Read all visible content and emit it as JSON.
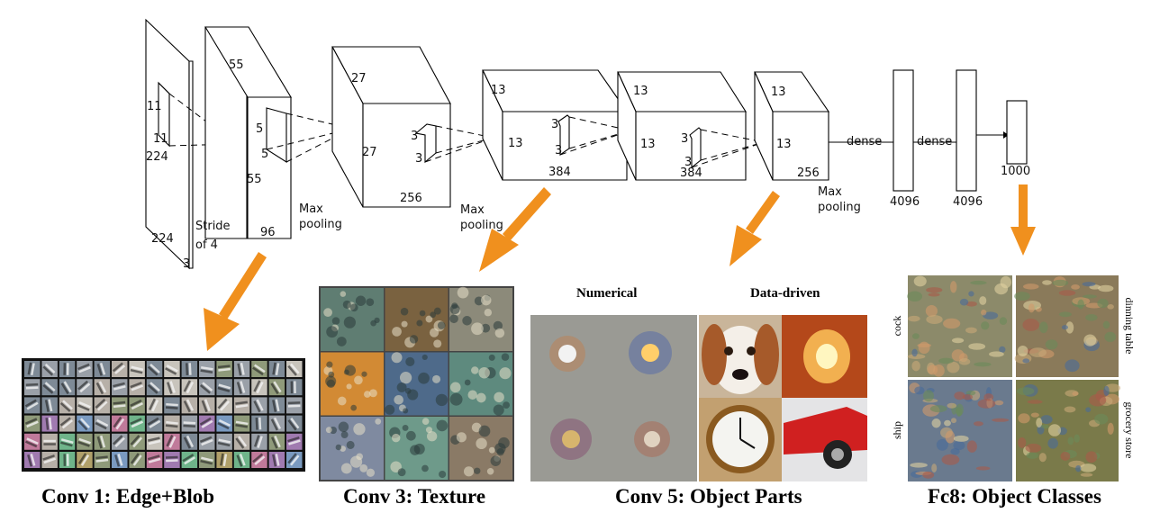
{
  "network": {
    "input": {
      "size_h": "224",
      "size_v": "224",
      "channels": "3",
      "kernel_a": "11",
      "kernel_b": "11"
    },
    "conv1": {
      "size_a": "55",
      "size_b": "55",
      "depth": "96",
      "stride_line1": "Stride",
      "stride_line2": "of 4",
      "kernel_a": "5",
      "kernel_b": "5"
    },
    "pool1": {
      "line1": "Max",
      "line2": "pooling"
    },
    "conv2": {
      "size_a": "27",
      "size_b": "27",
      "depth": "256",
      "kernel_a": "3",
      "kernel_b": "3"
    },
    "pool2": {
      "line1": "Max",
      "line2": "pooling"
    },
    "conv3": {
      "size_a": "13",
      "size_b": "13",
      "depth": "384",
      "kernel_a": "3",
      "kernel_b": "3"
    },
    "conv4": {
      "size_a": "13",
      "size_b": "13",
      "depth": "384",
      "kernel_a": "3",
      "kernel_b": "3"
    },
    "conv5": {
      "size_a": "13",
      "size_b": "13",
      "depth": "256"
    },
    "pool3": {
      "line1": "Max",
      "line2": "pooling"
    },
    "dense1": {
      "label": "dense",
      "size": "4096"
    },
    "dense2": {
      "label": "dense",
      "size": "4096"
    },
    "output": {
      "size": "1000"
    }
  },
  "panels": {
    "conv1": {
      "caption": "Conv 1: Edge+Blob"
    },
    "conv3": {
      "caption": "Conv 3: Texture"
    },
    "conv5": {
      "caption": "Conv 5: Object Parts",
      "sub_left": "Numerical",
      "sub_right": "Data-driven"
    },
    "fc8": {
      "caption": "Fc8: Object Classes",
      "class_1": "cock",
      "class_2": "dinning table",
      "class_3": "ship",
      "class_4": "grocery store"
    }
  },
  "colors": {
    "arrow": "#f0901e"
  }
}
